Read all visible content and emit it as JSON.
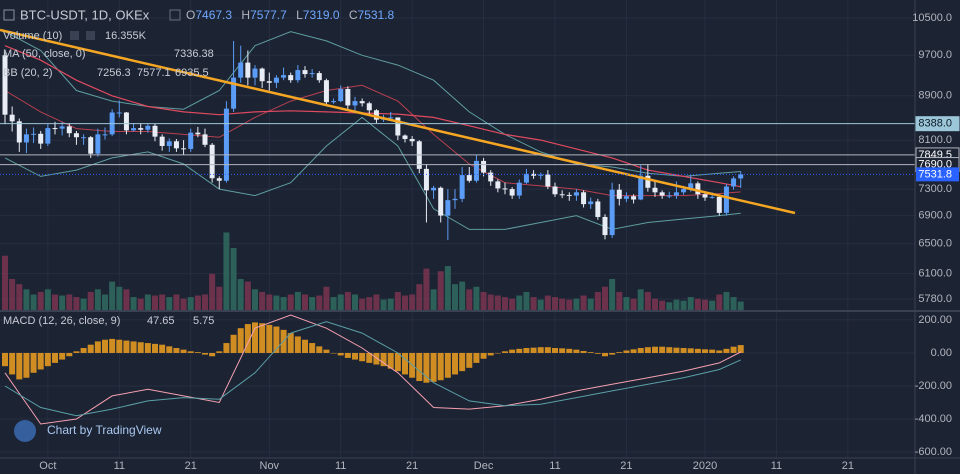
{
  "header": {
    "symbol": "BTC-USDT, 1D, OKEx",
    "ohlc_letters": [
      "O",
      "H",
      "L",
      "C"
    ],
    "ohlc_labels": [
      "7467.3",
      "7577.7",
      "7319.0",
      "7531.8"
    ]
  },
  "watermark": "Chart by TradingView",
  "chart_data": [
    {
      "type": "candlestick",
      "grid": true,
      "log_scale": true,
      "xlim": [
        -0.7,
        127.4
      ],
      "xticks": [
        {
          "value": 6,
          "label": "Oct"
        },
        {
          "value": 16,
          "label": "11"
        },
        {
          "value": 26,
          "label": "21"
        },
        {
          "value": 37,
          "label": "Nov"
        },
        {
          "value": 47,
          "label": "11"
        },
        {
          "value": 57,
          "label": "21"
        },
        {
          "value": 67,
          "label": "Dec"
        },
        {
          "value": 77,
          "label": "11"
        },
        {
          "value": 87,
          "label": "21"
        },
        {
          "value": 98,
          "label": "2020"
        },
        {
          "value": 108,
          "label": "11"
        },
        {
          "value": 118,
          "label": "21"
        }
      ],
      "ylim": [
        5646,
        10909
      ],
      "yticks": [
        {
          "value": 10500,
          "label": "10500.0"
        },
        {
          "value": 9700,
          "label": "9700.0"
        },
        {
          "value": 8900,
          "label": "8900.0"
        },
        {
          "value": 8100,
          "label": "8100.0"
        },
        {
          "value": 7300,
          "label": "7300.0"
        },
        {
          "value": 6900,
          "label": "6900.0"
        },
        {
          "value": 6500,
          "label": "6500.0"
        },
        {
          "value": 6100,
          "label": "6100.0"
        },
        {
          "value": 5780,
          "label": "5780.0"
        }
      ],
      "up_color": "#5b9cf6",
      "down_color": "#e8ecf4",
      "last_price_color": "#2962ff",
      "ohlc": [
        [
          9700,
          9760,
          8380,
          8550
        ],
        [
          8550,
          8700,
          8250,
          8430
        ],
        [
          8430,
          8480,
          7900,
          8060
        ],
        [
          8060,
          8300,
          7880,
          8200
        ],
        [
          8200,
          8320,
          8050,
          8210
        ],
        [
          8210,
          8260,
          7950,
          8040
        ],
        [
          8040,
          8380,
          8000,
          8310
        ],
        [
          8310,
          8420,
          8200,
          8300
        ],
        [
          8300,
          8420,
          8180,
          8340
        ],
        [
          8340,
          8400,
          8150,
          8220
        ],
        [
          8220,
          8260,
          8020,
          8150
        ],
        [
          8150,
          8200,
          8020,
          8150
        ],
        [
          8150,
          8170,
          7800,
          7870
        ],
        [
          7870,
          8300,
          7820,
          8200
        ],
        [
          8200,
          8320,
          8110,
          8200
        ],
        [
          8200,
          8650,
          8170,
          8590
        ],
        [
          8590,
          8810,
          8500,
          8590
        ],
        [
          8590,
          8600,
          8200,
          8270
        ],
        [
          8270,
          8400,
          8250,
          8310
        ],
        [
          8310,
          8400,
          8200,
          8280
        ],
        [
          8280,
          8400,
          8230,
          8350
        ],
        [
          8350,
          8390,
          8080,
          8160
        ],
        [
          8160,
          8200,
          7920,
          8000
        ],
        [
          8000,
          8130,
          7900,
          8080
        ],
        [
          8080,
          8120,
          7900,
          7960
        ],
        [
          7960,
          8100,
          7850,
          7950
        ],
        [
          7950,
          8300,
          7900,
          8230
        ],
        [
          8230,
          8330,
          8150,
          8200
        ],
        [
          8200,
          8300,
          7980,
          8020
        ],
        [
          8020,
          8050,
          7400,
          7470
        ],
        [
          7470,
          7500,
          7300,
          7430
        ],
        [
          7430,
          8800,
          7400,
          8660
        ],
        [
          8660,
          10000,
          8600,
          9250
        ],
        [
          9250,
          9900,
          9150,
          9550
        ],
        [
          9550,
          9800,
          9100,
          9250
        ],
        [
          9250,
          9500,
          9100,
          9430
        ],
        [
          9430,
          9450,
          9050,
          9180
        ],
        [
          9180,
          9350,
          9000,
          9150
        ],
        [
          9150,
          9300,
          9050,
          9250
        ],
        [
          9250,
          9450,
          9200,
          9300
        ],
        [
          9300,
          9350,
          9150,
          9200
        ],
        [
          9200,
          9500,
          9150,
          9400
        ],
        [
          9400,
          9480,
          9250,
          9320
        ],
        [
          9320,
          9420,
          9250,
          9340
        ],
        [
          9340,
          9380,
          9150,
          9200
        ],
        [
          9200,
          9230,
          8700,
          8780
        ],
        [
          8780,
          8850,
          8750,
          8800
        ],
        [
          8800,
          9100,
          8780,
          9030
        ],
        [
          9030,
          9080,
          8650,
          8720
        ],
        [
          8720,
          8880,
          8600,
          8800
        ],
        [
          8800,
          8850,
          8700,
          8760
        ],
        [
          8760,
          8790,
          8550,
          8630
        ],
        [
          8630,
          8650,
          8400,
          8460
        ],
        [
          8460,
          8550,
          8420,
          8490
        ],
        [
          8490,
          8600,
          8450,
          8500
        ],
        [
          8500,
          8500,
          8100,
          8180
        ],
        [
          8180,
          8200,
          8060,
          8120
        ],
        [
          8120,
          8170,
          8000,
          8080
        ],
        [
          8080,
          8100,
          7550,
          7620
        ],
        [
          7620,
          7700,
          6800,
          7280
        ],
        [
          7280,
          7350,
          7150,
          7320
        ],
        [
          7320,
          7340,
          6800,
          6900
        ],
        [
          6900,
          7300,
          6550,
          7130
        ],
        [
          7130,
          7300,
          7000,
          7150
        ],
        [
          7150,
          7650,
          7100,
          7520
        ],
        [
          7520,
          7650,
          7400,
          7430
        ],
        [
          7430,
          7850,
          7400,
          7750
        ],
        [
          7750,
          7800,
          7500,
          7560
        ],
        [
          7560,
          7600,
          7350,
          7420
        ],
        [
          7420,
          7450,
          7250,
          7310
        ],
        [
          7310,
          7400,
          7220,
          7300
        ],
        [
          7300,
          7330,
          7150,
          7200
        ],
        [
          7200,
          7450,
          7150,
          7400
        ],
        [
          7400,
          7620,
          7380,
          7540
        ],
        [
          7540,
          7600,
          7460,
          7510
        ],
        [
          7510,
          7560,
          7450,
          7530
        ],
        [
          7530,
          7600,
          7300,
          7340
        ],
        [
          7340,
          7400,
          7180,
          7220
        ],
        [
          7220,
          7280,
          7160,
          7210
        ],
        [
          7210,
          7250,
          7120,
          7200
        ],
        [
          7200,
          7300,
          7120,
          7250
        ],
        [
          7250,
          7280,
          7020,
          7070
        ],
        [
          7070,
          7170,
          7000,
          7110
        ],
        [
          7110,
          7150,
          6840,
          6880
        ],
        [
          6880,
          6920,
          6560,
          6620
        ],
        [
          6620,
          7400,
          6580,
          7290
        ],
        [
          7290,
          7380,
          7050,
          7150
        ],
        [
          7150,
          7250,
          7100,
          7190
        ],
        [
          7190,
          7220,
          7080,
          7140
        ],
        [
          7140,
          7680,
          7130,
          7510
        ],
        [
          7510,
          7700,
          7260,
          7320
        ],
        [
          7320,
          7420,
          7180,
          7250
        ],
        [
          7250,
          7280,
          7150,
          7200
        ],
        [
          7200,
          7260,
          7160,
          7200
        ],
        [
          7200,
          7420,
          7150,
          7250
        ],
        [
          7250,
          7350,
          7210,
          7300
        ],
        [
          7300,
          7520,
          7260,
          7390
        ],
        [
          7390,
          7420,
          7150,
          7220
        ],
        [
          7220,
          7250,
          7120,
          7170
        ],
        [
          7170,
          7250,
          7150,
          7180
        ],
        [
          7180,
          7220,
          6900,
          6940
        ],
        [
          6940,
          7380,
          6900,
          7340
        ],
        [
          7340,
          7500,
          7290,
          7467.3
        ],
        [
          7467.3,
          7577.7,
          7319,
          7531.8
        ]
      ],
      "volume": {
        "name": "Volume (10)",
        "ylim": [
          0,
          600
        ],
        "up_color": "#2f6b5f",
        "down_color": "#7a3550",
        "value_label": "16.355K",
        "label_color": "#53b987",
        "values": [
          105,
          60,
          50,
          40,
          30,
          35,
          40,
          30,
          28,
          30,
          25,
          22,
          35,
          40,
          30,
          55,
          45,
          40,
          25,
          22,
          30,
          28,
          30,
          25,
          30,
          22,
          25,
          28,
          30,
          70,
          45,
          150,
          120,
          60,
          55,
          40,
          35,
          30,
          28,
          25,
          30,
          35,
          30,
          25,
          28,
          45,
          25,
          30,
          35,
          30,
          22,
          25,
          30,
          20,
          22,
          35,
          28,
          30,
          50,
          80,
          40,
          75,
          85,
          50,
          55,
          40,
          45,
          35,
          30,
          28,
          25,
          22,
          28,
          35,
          25,
          20,
          28,
          25,
          22,
          20,
          22,
          28,
          22,
          35,
          45,
          60,
          35,
          25,
          22,
          40,
          35,
          22,
          18,
          15,
          20,
          18,
          25,
          22,
          20,
          18,
          30,
          35,
          25,
          16.355
        ]
      },
      "line_x": [
        0,
        5,
        10,
        15,
        20,
        25,
        30,
        35,
        40,
        45,
        50,
        55,
        60,
        65,
        70,
        75,
        80,
        85,
        90,
        95,
        100,
        103
      ],
      "ma": {
        "name": "MA (50, close, 0)",
        "color": "#e04a5f",
        "values": [
          9900,
          9600,
          9200,
          8900,
          8700,
          8600,
          8550,
          8600,
          8620,
          8600,
          8580,
          8560,
          8500,
          8350,
          8200,
          8100,
          7950,
          7800,
          7600,
          7500,
          7400,
          7336.38
        ]
      },
      "bb": {
        "name": "BB (20, 2)",
        "lines": [
          {
            "color": "#b8404f",
            "values": [
              9000,
              8600,
              8300,
              8250,
              8250,
              8200,
              8150,
              8500,
              8800,
              9000,
              9100,
              8800,
              8200,
              7700,
              7400,
              7350,
              7300,
              7200,
              7200,
              7200,
              7230,
              7256.3
            ]
          },
          {
            "color": "#5f9ea0",
            "values": [
              10200,
              9800,
              9000,
              8800,
              8700,
              8650,
              9000,
              9900,
              10200,
              10000,
              9700,
              9500,
              9200,
              8600,
              8200,
              7900,
              7700,
              7650,
              7550,
              7500,
              7550,
              7577.1
            ]
          },
          {
            "color": "#5f9ea0",
            "values": [
              7800,
              7500,
              7600,
              7800,
              7900,
              7700,
              7300,
              7200,
              7400,
              8000,
              8500,
              8000,
              7000,
              6700,
              6700,
              6800,
              6900,
              6700,
              6800,
              6850,
              6900,
              6935.5
            ]
          }
        ]
      },
      "price_lines": [
        {
          "value": 8388,
          "label": "8388.0",
          "color": "#9cc7d9"
        },
        {
          "value": 7849.5,
          "color": "#b2b5be"
        },
        {
          "value": 7690,
          "label": "7690.0",
          "color": "#b2b5be"
        }
      ]
    },
    {
      "type": "macd",
      "name": "MACD (12, 26, close, 9)",
      "grid": true,
      "ylim": [
        -636,
        248
      ],
      "yticks": [
        {
          "value": 200,
          "label": "200.00"
        },
        {
          "value": 0,
          "label": "0.00"
        },
        {
          "value": -200,
          "label": "-200.00"
        },
        {
          "value": -400,
          "label": "-400.00"
        },
        {
          "value": -600,
          "label": "-600.00"
        }
      ],
      "histogram": {
        "color": "#f0a020",
        "values": [
          -80,
          -130,
          -160,
          -150,
          -120,
          -100,
          -80,
          -60,
          -40,
          -20,
          10,
          30,
          50,
          70,
          80,
          85,
          80,
          75,
          70,
          65,
          60,
          55,
          50,
          40,
          30,
          20,
          10,
          5,
          -10,
          -20,
          10,
          60,
          110,
          150,
          175,
          185,
          180,
          170,
          160,
          140,
          120,
          100,
          80,
          60,
          40,
          20,
          0,
          -15,
          -30,
          -40,
          -50,
          -60,
          -70,
          -80,
          -95,
          -110,
          -130,
          -150,
          -170,
          -180,
          -175,
          -165,
          -150,
          -130,
          -110,
          -90,
          -60,
          -35,
          -15,
          0,
          10,
          20,
          25,
          30,
          32,
          35,
          35,
          30,
          28,
          25,
          20,
          12,
          5,
          -5,
          -20,
          -10,
          5,
          15,
          22,
          30,
          35,
          38,
          38,
          35,
          32,
          30,
          28,
          25,
          22,
          20,
          15,
          25,
          38,
          47.65
        ]
      },
      "line_x": [
        0,
        5,
        10,
        15,
        20,
        25,
        30,
        35,
        40,
        45,
        50,
        55,
        60,
        65,
        70,
        75,
        80,
        85,
        90,
        95,
        100,
        103
      ],
      "series": [
        {
          "color": "#f5a0b0",
          "values": [
            -120,
            -430,
            -400,
            -260,
            -220,
            -260,
            -300,
            150,
            230,
            150,
            30,
            -120,
            -330,
            -340,
            -320,
            -280,
            -230,
            -190,
            -150,
            -110,
            -60,
            5.75
          ]
        },
        {
          "color": "#5aa0a8",
          "values": [
            -200,
            -330,
            -380,
            -340,
            -290,
            -270,
            -280,
            -120,
            120,
            190,
            120,
            0,
            -180,
            -290,
            -320,
            -310,
            -270,
            -230,
            -190,
            -150,
            -100,
            -41.9
          ]
        }
      ]
    }
  ]
}
